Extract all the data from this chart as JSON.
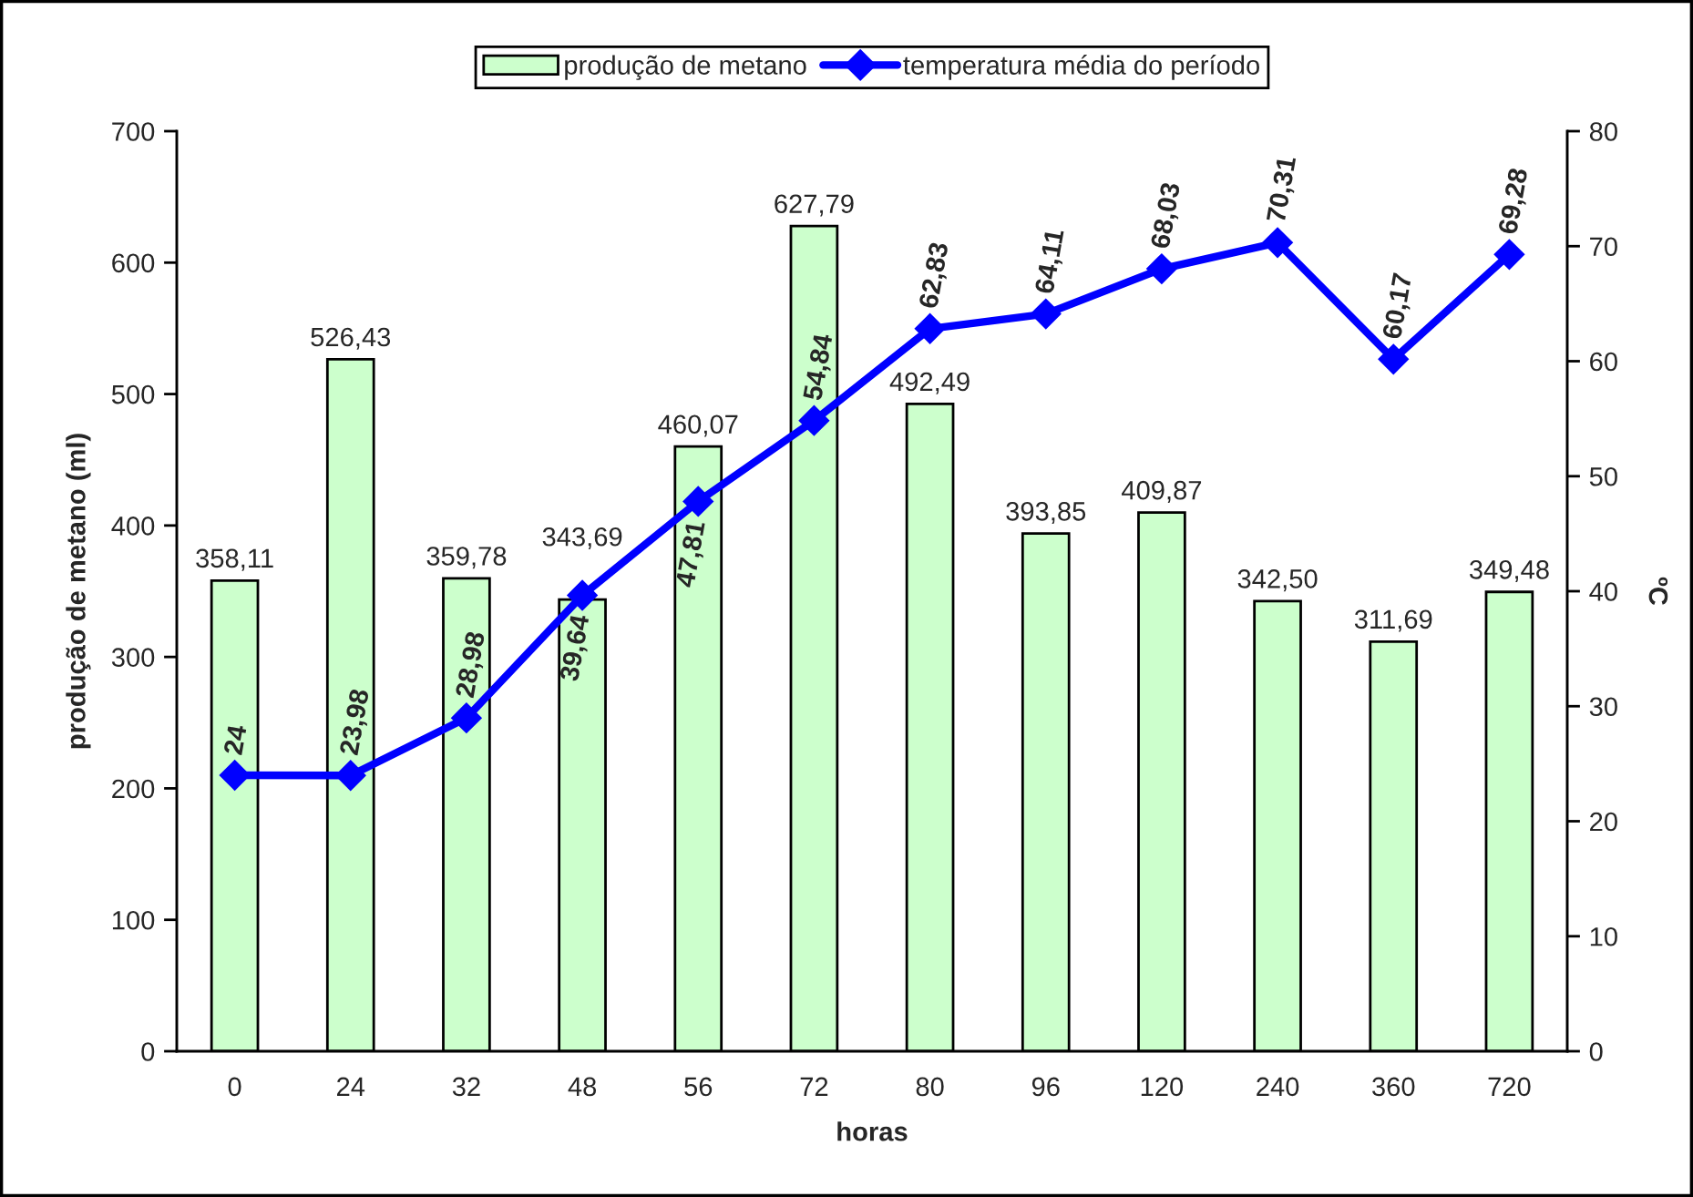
{
  "chart_data": {
    "type": "bar",
    "categories": [
      "0",
      "24",
      "32",
      "48",
      "56",
      "72",
      "80",
      "96",
      "120",
      "240",
      "360",
      "720"
    ],
    "xlabel": "horas",
    "ylabel": "produção de metano (ml)",
    "y2label": "ºC",
    "ylim": [
      0,
      700
    ],
    "yticks": [
      0,
      100,
      200,
      300,
      400,
      500,
      600,
      700
    ],
    "y2lim": [
      0,
      80
    ],
    "y2ticks": [
      0,
      10,
      20,
      30,
      40,
      50,
      60,
      70,
      80
    ],
    "legend": "top",
    "series": [
      {
        "name": "produção de metano",
        "color": "#ccffcc",
        "values": [
          358.11,
          526.43,
          359.78,
          343.69,
          460.07,
          627.79,
          492.49,
          393.85,
          409.87,
          342.5,
          311.69,
          349.48
        ],
        "value_labels": [
          "358,11",
          "526,43",
          "359,78",
          "343,69",
          "460,07",
          "627,79",
          "492,49",
          "393,85",
          "409,87",
          "342,50",
          "311,69",
          "349,48"
        ]
      },
      {
        "name": "temperatura média do período",
        "type": "line",
        "axis": "y2",
        "color": "#0000ff",
        "marker": "diamond",
        "line_style": "solid",
        "values": [
          24,
          23.98,
          28.98,
          39.64,
          47.81,
          54.84,
          62.83,
          64.11,
          68.03,
          70.31,
          60.17,
          69.28
        ],
        "value_labels": [
          "24",
          "23,98",
          "28,98",
          "39,64",
          "47,81",
          "54,84",
          "62,83",
          "64,11",
          "68,03",
          "70,31",
          "60,17",
          "69,28"
        ]
      }
    ]
  }
}
